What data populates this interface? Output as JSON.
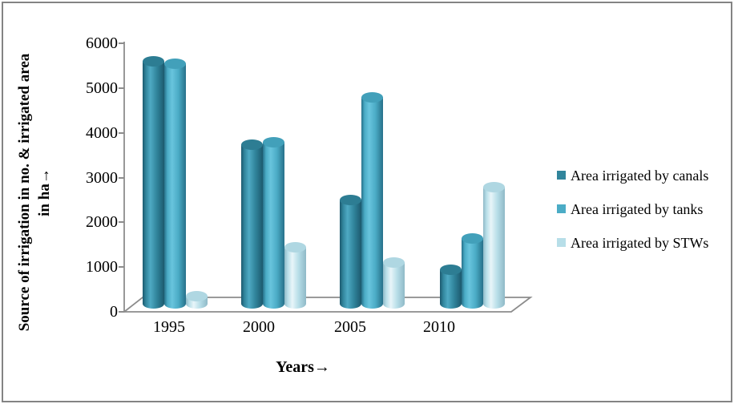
{
  "chart_data": {
    "type": "bar",
    "subtype": "3d-cylinder-clustered",
    "title": "",
    "categories": [
      "1995",
      "2000",
      "2005",
      "2010"
    ],
    "series": [
      {
        "name": "Area irrigated by canals",
        "values": [
          5450,
          3600,
          2350,
          800
        ],
        "colors": {
          "dark": "#1C596E",
          "main": "#31859C",
          "light": "#4EA9C3",
          "top": "#2D7D93"
        }
      },
      {
        "name": "Area irrigated by tanks",
        "values": [
          5400,
          3650,
          4650,
          1500
        ],
        "colors": {
          "dark": "#27718A",
          "main": "#4BACC6",
          "light": "#68C4DD",
          "top": "#42A0BA"
        }
      },
      {
        "name": "Area irrigated by STWs",
        "values": [
          200,
          1300,
          950,
          2650
        ],
        "colors": {
          "dark": "#8FB9C7",
          "main": "#B7DEE8",
          "light": "#E8F5F9",
          "top": "#AFD7E2"
        }
      }
    ],
    "xlabel": "Years→",
    "ylabel": "Source of irrigation in no. & irrigated area in ha→",
    "ylim": [
      0,
      6000
    ],
    "y_ticks": [
      0,
      1000,
      2000,
      3000,
      4000,
      5000,
      6000
    ],
    "legend_position": "right",
    "grid": false,
    "axis_color": "#8C8C8C"
  },
  "y_axis": {
    "title_line1": "Source of irrigation in no. & irrigated area",
    "title_line2": "in ha→"
  },
  "x_axis": {
    "title": "Years→"
  }
}
